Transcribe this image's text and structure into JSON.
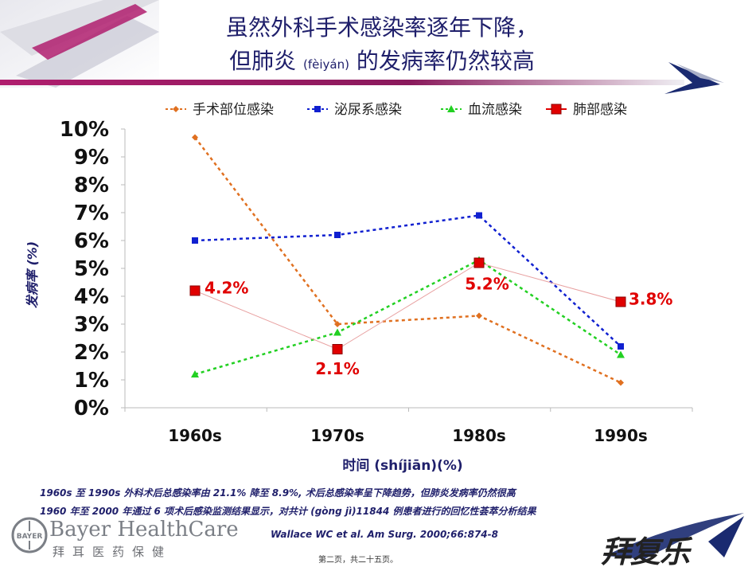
{
  "title": {
    "line1": "虽然外科手术感染率逐年下降，",
    "line2_main": "但肺炎 ",
    "line2_pinyin": "(fèiyán)",
    "line2_tail": " 的发病率仍然较高"
  },
  "notes": {
    "line1": "1960s 至 1990s 外科术后总感染率由 21.1% 降至 8.9%, 术后总感染率呈下降趋势，但肺炎发病率仍然很高",
    "line2": "1960 年至 2000 年通过 6 项术后感染监测结果显示，对共计 (gòng jì)11844 例患者进行的回忆性荟萃分析结果"
  },
  "citation": "Wallace WC et al. Am Surg. 2000;66:874-8",
  "logo": {
    "company": "Bayer HealthCare",
    "company_cn": "拜耳医药保健",
    "brand": "拜复乐"
  },
  "footer": "第二页，共二十五页。",
  "chart_data": {
    "type": "line",
    "categories": [
      "1960s",
      "1970s",
      "1980s",
      "1990s"
    ],
    "xlabel": "时间 (shíjiān)(%)",
    "ylabel": "发病率 (%)",
    "ylim": [
      0,
      10
    ],
    "yticks": [
      "0%",
      "1%",
      "2%",
      "3%",
      "4%",
      "5%",
      "6%",
      "7%",
      "8%",
      "9%",
      "10%"
    ],
    "legend_position": "top",
    "series": [
      {
        "name": "手术部位感染",
        "values": [
          9.7,
          3.0,
          3.3,
          0.9
        ],
        "color": "#e07020",
        "marker": "diamond",
        "dash": "4,4"
      },
      {
        "name": "泌尿系感染",
        "values": [
          6.0,
          6.2,
          6.9,
          2.2
        ],
        "color": "#1020d0",
        "marker": "square",
        "dash": "4,4"
      },
      {
        "name": "血流感染",
        "values": [
          1.2,
          2.7,
          5.3,
          1.9
        ],
        "color": "#22d022",
        "marker": "triangle",
        "dash": "4,4"
      },
      {
        "name": "肺部感染",
        "values": [
          4.2,
          2.1,
          5.2,
          3.8
        ],
        "color": "#e00000",
        "marker": "bigsquare",
        "dash": "",
        "labels": [
          "4.2%",
          "2.1%",
          "5.2%",
          "3.8%"
        ]
      }
    ]
  }
}
